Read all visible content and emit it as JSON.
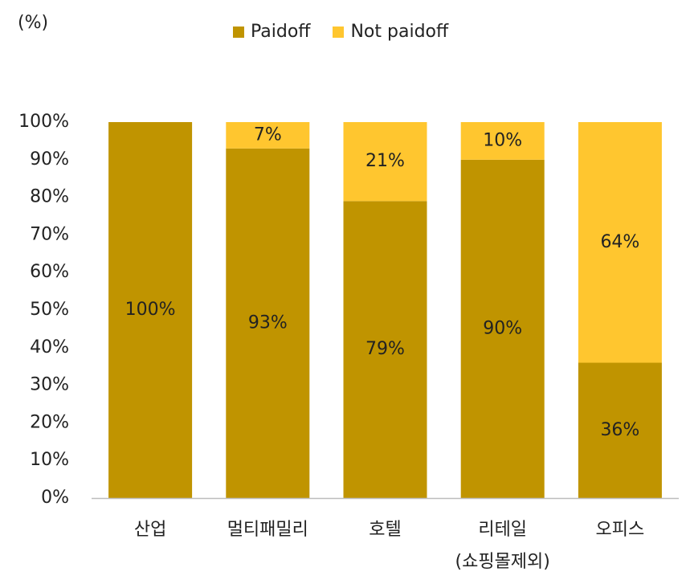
{
  "chart_data": {
    "type": "bar",
    "stacked": true,
    "unit_label": "(%)",
    "categories": [
      "산업",
      "멀티패밀리",
      "호텔",
      "리테일",
      "오피스"
    ],
    "category_sublabels": [
      "",
      "",
      "",
      "(쇼핑몰제외)",
      ""
    ],
    "series": [
      {
        "name": "Paidoff",
        "color": "#C09400",
        "values": [
          100,
          93,
          79,
          90,
          36
        ],
        "labels": [
          "100%",
          "93%",
          "79%",
          "90%",
          "36%"
        ]
      },
      {
        "name": "Not paidoff",
        "color": "#FFC62F",
        "values": [
          0,
          7,
          21,
          10,
          64
        ],
        "labels": [
          "",
          "7%",
          "21%",
          "10%",
          "64%"
        ]
      }
    ],
    "ylim": [
      0,
      100
    ],
    "yticks": [
      "0%",
      "10%",
      "20%",
      "30%",
      "40%",
      "50%",
      "60%",
      "70%",
      "80%",
      "90%",
      "100%"
    ],
    "grid": false,
    "legend_position": "top"
  }
}
